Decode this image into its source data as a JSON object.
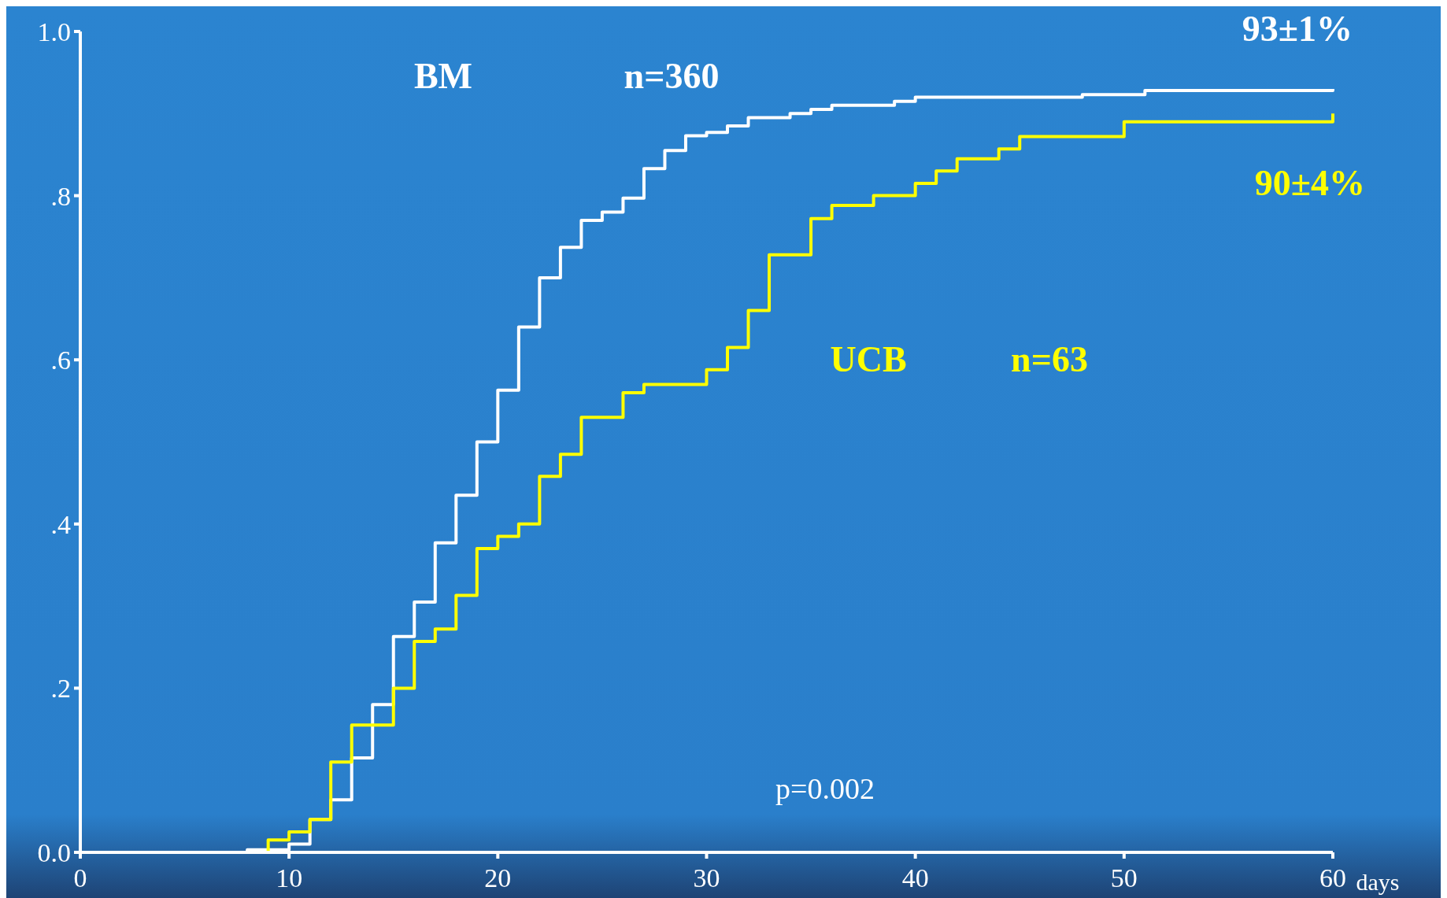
{
  "chart_data": {
    "type": "step",
    "xlabel": "days",
    "xlim": [
      0,
      60
    ],
    "ylim": [
      0,
      1
    ],
    "xticks": [
      0,
      10,
      20,
      30,
      40,
      50,
      60
    ],
    "yticks": [
      {
        "value": 0,
        "label": "0.0"
      },
      {
        "value": 0.2,
        "label": ".2"
      },
      {
        "value": 0.4,
        "label": ".4"
      },
      {
        "value": 0.6,
        "label": ".6"
      },
      {
        "value": 0.8,
        "label": ".8"
      },
      {
        "value": 1,
        "label": "1.0"
      }
    ],
    "grid": false,
    "line_style": "solid",
    "marker": "none",
    "series": [
      {
        "name": "BM",
        "color": "#ffffff",
        "x": [
          0,
          8,
          10,
          11,
          12,
          13,
          14,
          15,
          16,
          17,
          18,
          19,
          20,
          21,
          22,
          23,
          24,
          25,
          26,
          27,
          28,
          29,
          30,
          31,
          32,
          34,
          35,
          36,
          39,
          40,
          48,
          51,
          60
        ],
        "values": [
          0,
          0.003,
          0.01,
          0.04,
          0.064,
          0.115,
          0.18,
          0.263,
          0.305,
          0.377,
          0.435,
          0.5,
          0.563,
          0.64,
          0.7,
          0.737,
          0.77,
          0.78,
          0.797,
          0.833,
          0.855,
          0.873,
          0.877,
          0.885,
          0.895,
          0.9,
          0.905,
          0.91,
          0.915,
          0.92,
          0.923,
          0.928,
          0.93
        ]
      },
      {
        "name": "UCB",
        "color": "#ffff00",
        "x": [
          0,
          9,
          10,
          11,
          12,
          13,
          15,
          16,
          17,
          18,
          19,
          20,
          21,
          22,
          23,
          24,
          26,
          27,
          30,
          31,
          32,
          33,
          35,
          36,
          38,
          40,
          41,
          42,
          44,
          45,
          50,
          60
        ],
        "values": [
          0,
          0.015,
          0.025,
          0.04,
          0.11,
          0.155,
          0.2,
          0.257,
          0.272,
          0.313,
          0.37,
          0.385,
          0.4,
          0.458,
          0.485,
          0.53,
          0.56,
          0.57,
          0.588,
          0.615,
          0.66,
          0.728,
          0.772,
          0.788,
          0.8,
          0.815,
          0.83,
          0.845,
          0.857,
          0.872,
          0.89,
          0.9
        ]
      }
    ],
    "annotations": [
      "n=360",
      "n=63",
      "93±1%",
      "90±4%",
      "p=0.002"
    ]
  }
}
